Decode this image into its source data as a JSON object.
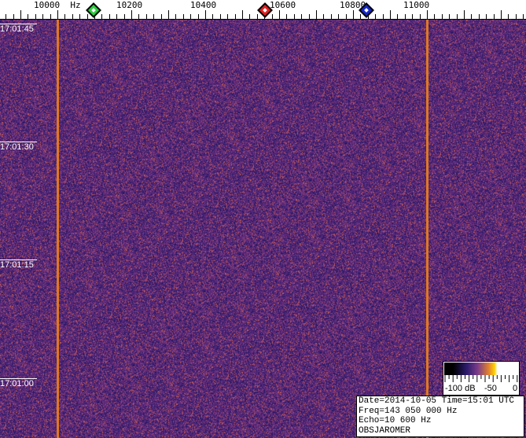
{
  "freq_axis": {
    "unit": "Hz",
    "labels": [
      "10000",
      "10200",
      "10400",
      "10600",
      "10800",
      "11000"
    ],
    "markers": [
      {
        "name": "green",
        "freq_hz": 10098,
        "color": "#2ecc40"
      },
      {
        "name": "red",
        "freq_hz": 10562,
        "color": "#e02020"
      },
      {
        "name": "blue",
        "freq_hz": 10836,
        "color": "#1428c8"
      }
    ]
  },
  "time_labels": [
    "17:01:45",
    "17:01:30",
    "17:01:15",
    "17:01:00"
  ],
  "carrier_lines_hz": [
    10000,
    11000
  ],
  "colors": {
    "background": "#4a2a7a",
    "carrier": "#e07820"
  },
  "legend": {
    "min_label": "-100 dB",
    "mid_label": "-50",
    "max_label": "0"
  },
  "info": {
    "date_time": "Date=2014-10-05 Time=15:01 UTC",
    "freq": "Freq=143 050 000 Hz",
    "echo": "Echo=10 600 Hz",
    "station": "OBSJAROMER"
  }
}
